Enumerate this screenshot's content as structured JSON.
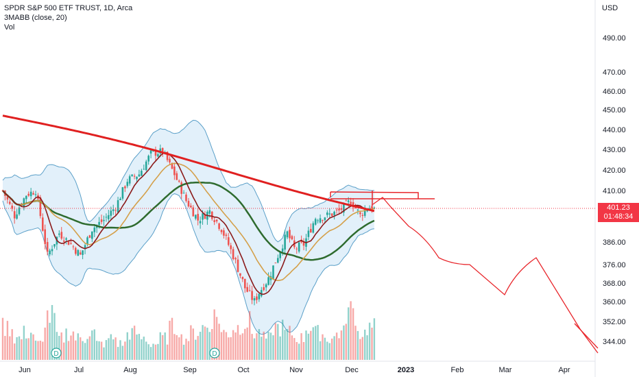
{
  "legend": {
    "title": "SPDR S&P 500 ETF TRUST, 1D, Arca",
    "indicator": "3MABB (close, 20)",
    "volume": "Vol"
  },
  "price_axis": {
    "currency": "USD",
    "current_price": "401.23",
    "countdown": "01:48:34"
  },
  "colors": {
    "up": "#26a69a",
    "down": "#ef5350",
    "ma_short": "#8b1a1a",
    "ma_mid": "#d4a04a",
    "ma_long": "#2e6b2e",
    "ma_200": "#e02020",
    "band_fill": "#d6eaf8",
    "band_line": "#5a9fc8",
    "drawing": "#e8262b",
    "current_line": "#f23645"
  },
  "chart_data": {
    "type": "candlestick",
    "symbol": "SPDR S&P 500 ETF TRUST",
    "interval": "1D",
    "exchange": "Arca",
    "y_ticks": [
      "490.00",
      "470.00",
      "460.00",
      "450.00",
      "440.00",
      "430.00",
      "420.00",
      "410.00",
      "386.00",
      "376.00",
      "368.00",
      "360.00",
      "352.00",
      "344.00"
    ],
    "x_ticks": [
      "Jun",
      "Jul",
      "Aug",
      "Sep",
      "Oct",
      "Nov",
      "Dec",
      "2023",
      "Feb",
      "Mar",
      "Apr"
    ],
    "dividend_markers": [
      "D",
      "D"
    ],
    "current_price": 401.23,
    "close_anchors": [
      [
        0,
        410
      ],
      [
        5,
        398
      ],
      [
        10,
        408
      ],
      [
        14,
        410
      ],
      [
        19,
        380
      ],
      [
        24,
        390
      ],
      [
        29,
        385
      ],
      [
        33,
        380
      ],
      [
        38,
        392
      ],
      [
        43,
        396
      ],
      [
        48,
        402
      ],
      [
        53,
        415
      ],
      [
        58,
        418
      ],
      [
        63,
        428
      ],
      [
        68,
        429
      ],
      [
        73,
        418
      ],
      [
        78,
        405
      ],
      [
        83,
        396
      ],
      [
        88,
        400
      ],
      [
        93,
        392
      ],
      [
        98,
        380
      ],
      [
        103,
        366
      ],
      [
        107,
        360
      ],
      [
        109,
        364
      ],
      [
        113,
        370
      ],
      [
        117,
        380
      ],
      [
        121,
        390
      ],
      [
        124,
        383
      ],
      [
        128,
        385
      ],
      [
        133,
        397
      ],
      [
        138,
        398
      ],
      [
        143,
        400
      ],
      [
        148,
        405
      ],
      [
        152,
        398
      ],
      [
        155,
        402
      ],
      [
        158,
        401
      ]
    ],
    "volume_level": [
      0.6,
      0.4,
      0.5,
      0.3,
      0.8,
      0.4,
      0.5,
      0.4,
      0.5,
      0.3,
      0.4,
      0.3,
      0.5,
      0.4,
      0.3,
      0.4,
      0.6,
      0.4,
      0.5,
      0.6,
      0.8,
      0.5,
      0.6,
      0.7,
      0.5,
      0.4,
      0.6,
      0.5,
      0.4,
      0.6,
      0.5,
      0.4,
      0.5,
      0.9,
      0.5,
      0.6
    ]
  }
}
